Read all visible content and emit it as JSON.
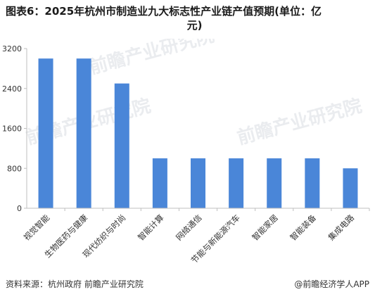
{
  "title_line1": "图表6：2025年杭州市制造业九大标志性产业链产值预期(单位：亿",
  "title_line2": "元)",
  "watermark": "前瞻产业研究院",
  "source": "资料来源：杭州政府 前瞻产业研究院",
  "brand": "@前瞻经济学人APP",
  "bar_color": "#4a86d8",
  "chart_data": {
    "type": "bar",
    "title": "图表6：2025年杭州市制造业九大标志性产业链产值预期(单位：亿元)",
    "xlabel": "",
    "ylabel": "",
    "categories": [
      "视觉智能",
      "生物医药与健康",
      "现代纺织与时尚",
      "智能计算",
      "网络通信",
      "节能与新能源汽车",
      "智能家居",
      "智能装备",
      "集成电路"
    ],
    "values": [
      3000,
      3000,
      2500,
      1000,
      1000,
      1000,
      1000,
      1000,
      800
    ],
    "ylim": [
      0,
      3200
    ],
    "yticks": [
      0,
      800,
      1600,
      2400,
      3200
    ],
    "grid": false,
    "legend": "none"
  }
}
